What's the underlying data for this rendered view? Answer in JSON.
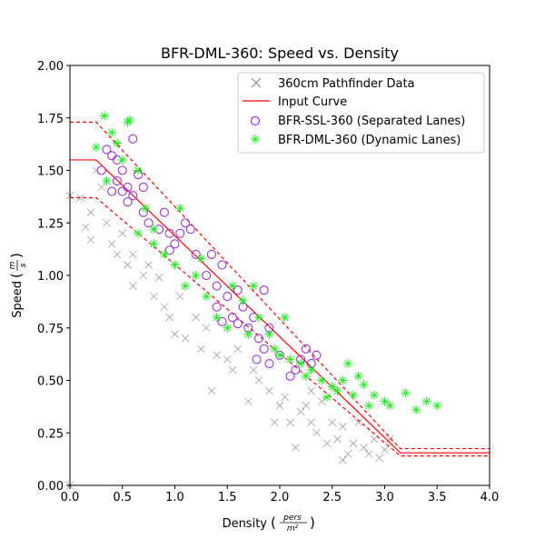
{
  "chart_data": {
    "type": "scatter",
    "title": "BFR-DML-360: Speed vs. Density",
    "xlabel": "Density",
    "xlabel_unit_num": "pers",
    "xlabel_unit_den": "m²",
    "ylabel": "Speed",
    "ylabel_unit_num": "m",
    "ylabel_unit_den": "s",
    "xlim": [
      0,
      4
    ],
    "ylim": [
      0,
      2
    ],
    "xticks": [
      "0.0",
      "0.5",
      "1.0",
      "1.5",
      "2.0",
      "2.5",
      "3.0",
      "3.5",
      "4.0"
    ],
    "yticks": [
      "0.00",
      "0.25",
      "0.50",
      "0.75",
      "1.00",
      "1.25",
      "1.50",
      "1.75",
      "2.00"
    ],
    "legend_position": "upper-right",
    "colors": {
      "pathfinder": "#808080",
      "input": "#ff0000",
      "ssl": "#9b30e0",
      "dml": "#22ee22"
    },
    "input_curve": {
      "label": "Input Curve",
      "center": [
        [
          0,
          1.55
        ],
        [
          0.25,
          1.55
        ],
        [
          3.15,
          0.155
        ],
        [
          4,
          0.155
        ]
      ],
      "upper": [
        [
          0,
          1.73
        ],
        [
          0.25,
          1.73
        ],
        [
          3.15,
          0.175
        ],
        [
          4,
          0.175
        ]
      ],
      "lower": [
        [
          0,
          1.37
        ],
        [
          0.25,
          1.37
        ],
        [
          3.15,
          0.14
        ],
        [
          4,
          0.14
        ]
      ]
    },
    "series": [
      {
        "name": "360cm Pathfinder Data",
        "marker": "x",
        "points": [
          [
            0.0,
            1.38
          ],
          [
            0.1,
            1.37
          ],
          [
            0.15,
            1.23
          ],
          [
            0.2,
            1.17
          ],
          [
            0.2,
            1.3
          ],
          [
            0.25,
            1.5
          ],
          [
            0.3,
            1.42
          ],
          [
            0.35,
            1.25
          ],
          [
            0.4,
            1.15
          ],
          [
            0.45,
            1.1
          ],
          [
            0.5,
            1.2
          ],
          [
            0.55,
            1.05
          ],
          [
            0.6,
            0.95
          ],
          [
            0.6,
            1.1
          ],
          [
            0.7,
            1.0
          ],
          [
            0.75,
            1.05
          ],
          [
            0.8,
            0.9
          ],
          [
            0.85,
            0.99
          ],
          [
            0.9,
            0.85
          ],
          [
            0.95,
            0.8
          ],
          [
            1.0,
            0.72
          ],
          [
            1.05,
            0.9
          ],
          [
            1.1,
            0.7
          ],
          [
            1.2,
            0.8
          ],
          [
            1.25,
            0.65
          ],
          [
            1.3,
            0.75
          ],
          [
            1.35,
            0.45
          ],
          [
            1.4,
            0.62
          ],
          [
            1.5,
            0.6
          ],
          [
            1.55,
            0.55
          ],
          [
            1.6,
            0.65
          ],
          [
            1.7,
            0.4
          ],
          [
            1.75,
            0.55
          ],
          [
            1.8,
            0.5
          ],
          [
            1.9,
            0.45
          ],
          [
            2.0,
            0.38
          ],
          [
            2.05,
            0.42
          ],
          [
            2.1,
            0.3
          ],
          [
            2.15,
            0.18
          ],
          [
            2.2,
            0.35
          ],
          [
            2.3,
            0.3
          ],
          [
            2.35,
            0.25
          ],
          [
            2.4,
            0.4
          ],
          [
            2.45,
            0.2
          ],
          [
            2.5,
            0.3
          ],
          [
            2.55,
            0.22
          ],
          [
            2.6,
            0.28
          ],
          [
            2.65,
            0.15
          ],
          [
            2.7,
            0.2
          ],
          [
            2.75,
            0.3
          ],
          [
            2.8,
            0.18
          ],
          [
            2.85,
            0.15
          ],
          [
            2.9,
            0.22
          ],
          [
            2.95,
            0.13
          ],
          [
            3.0,
            0.17
          ],
          [
            3.05,
            0.22
          ],
          [
            0.0,
            0.0
          ],
          [
            2.3,
            0.45
          ],
          [
            1.95,
            0.3
          ],
          [
            2.6,
            0.12
          ],
          [
            2.25,
            0.38
          ]
        ]
      },
      {
        "name": "BFR-SSL-360 (Separated Lanes)",
        "marker": "o",
        "points": [
          [
            0.3,
            1.5
          ],
          [
            0.35,
            1.6
          ],
          [
            0.4,
            1.57
          ],
          [
            0.45,
            1.55
          ],
          [
            0.45,
            1.45
          ],
          [
            0.5,
            1.4
          ],
          [
            0.5,
            1.5
          ],
          [
            0.55,
            1.42
          ],
          [
            0.6,
            1.38
          ],
          [
            0.6,
            1.65
          ],
          [
            0.65,
            1.48
          ],
          [
            0.4,
            1.4
          ],
          [
            0.55,
            1.35
          ],
          [
            0.7,
            1.3
          ],
          [
            0.7,
            1.42
          ],
          [
            0.75,
            1.25
          ],
          [
            0.85,
            1.22
          ],
          [
            0.9,
            1.3
          ],
          [
            0.95,
            1.2
          ],
          [
            1.0,
            1.15
          ],
          [
            1.05,
            1.2
          ],
          [
            1.1,
            1.25
          ],
          [
            1.15,
            1.22
          ],
          [
            0.95,
            1.12
          ],
          [
            1.2,
            1.1
          ],
          [
            1.35,
            1.1
          ],
          [
            1.3,
            1.0
          ],
          [
            1.4,
            0.95
          ],
          [
            1.45,
            1.05
          ],
          [
            1.4,
            0.85
          ],
          [
            1.45,
            0.78
          ],
          [
            1.5,
            0.9
          ],
          [
            1.55,
            0.8
          ],
          [
            1.6,
            0.93
          ],
          [
            1.65,
            0.85
          ],
          [
            1.7,
            0.75
          ],
          [
            1.75,
            0.8
          ],
          [
            1.8,
            0.7
          ],
          [
            1.85,
            0.93
          ],
          [
            1.85,
            0.65
          ],
          [
            1.9,
            0.75
          ],
          [
            1.9,
            0.58
          ],
          [
            2.0,
            0.62
          ],
          [
            2.1,
            0.52
          ],
          [
            2.15,
            0.55
          ],
          [
            2.2,
            0.6
          ],
          [
            2.25,
            0.65
          ],
          [
            2.3,
            0.58
          ],
          [
            2.35,
            0.62
          ],
          [
            1.78,
            0.6
          ],
          [
            1.6,
            0.77
          ]
        ]
      },
      {
        "name": "BFR-DML-360 (Dynamic Lanes)",
        "marker": "*",
        "points": [
          [
            0.25,
            1.61
          ],
          [
            0.33,
            1.76
          ],
          [
            0.4,
            1.68
          ],
          [
            0.45,
            1.63
          ],
          [
            0.55,
            1.73
          ],
          [
            0.57,
            1.74
          ],
          [
            0.5,
            1.55
          ],
          [
            0.65,
            1.5
          ],
          [
            0.72,
            1.32
          ],
          [
            0.8,
            1.22
          ],
          [
            0.65,
            1.2
          ],
          [
            0.9,
            1.1
          ],
          [
            1.0,
            1.05
          ],
          [
            1.05,
            1.32
          ],
          [
            1.1,
            0.95
          ],
          [
            1.2,
            1.0
          ],
          [
            1.25,
            1.08
          ],
          [
            1.3,
            0.9
          ],
          [
            1.4,
            0.8
          ],
          [
            1.5,
            0.75
          ],
          [
            1.55,
            0.95
          ],
          [
            1.65,
            0.88
          ],
          [
            1.7,
            0.72
          ],
          [
            1.75,
            0.95
          ],
          [
            1.8,
            0.8
          ],
          [
            1.9,
            0.72
          ],
          [
            1.95,
            0.65
          ],
          [
            2.0,
            0.62
          ],
          [
            2.05,
            0.8
          ],
          [
            2.1,
            0.6
          ],
          [
            2.2,
            0.58
          ],
          [
            2.25,
            0.52
          ],
          [
            2.3,
            0.55
          ],
          [
            2.4,
            0.5
          ],
          [
            2.5,
            0.47
          ],
          [
            2.55,
            0.45
          ],
          [
            2.6,
            0.5
          ],
          [
            2.65,
            0.58
          ],
          [
            2.7,
            0.43
          ],
          [
            2.8,
            0.48
          ],
          [
            2.9,
            0.43
          ],
          [
            3.0,
            0.4
          ],
          [
            3.05,
            0.38
          ],
          [
            3.2,
            0.44
          ],
          [
            3.3,
            0.36
          ],
          [
            3.4,
            0.4
          ],
          [
            3.5,
            0.38
          ],
          [
            2.45,
            0.42
          ],
          [
            2.75,
            0.52
          ],
          [
            2.85,
            0.38
          ],
          [
            0.35,
            1.45
          ],
          [
            0.8,
            1.15
          ]
        ]
      }
    ]
  }
}
